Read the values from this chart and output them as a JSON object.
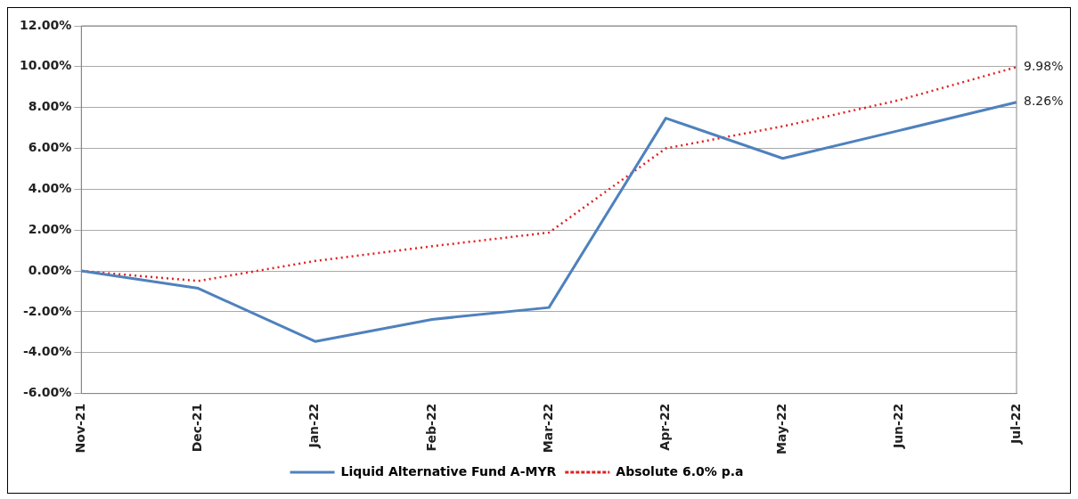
{
  "chart_data": {
    "type": "line",
    "categories": [
      "Nov-21",
      "Dec-21",
      "Jan-22",
      "Feb-22",
      "Mar-22",
      "Apr-22",
      "May-22",
      "Jun-22",
      "Jul-22"
    ],
    "series": [
      {
        "name": "Liquid Alternative Fund A-MYR",
        "color": "#4f81bd",
        "line_style": "solid",
        "values": [
          0,
          -0.85,
          -3.45,
          -2.37,
          -1.79,
          7.48,
          5.51,
          6.88,
          8.26
        ],
        "value_labels": [
          null,
          null,
          null,
          null,
          null,
          null,
          null,
          null,
          "8.26%"
        ]
      },
      {
        "name": "Absolute 6.0% p.a",
        "color": "#e02020",
        "line_style": "dotted",
        "values": [
          0,
          -0.49,
          0.49,
          1.21,
          1.88,
          6.0,
          7.08,
          8.37,
          9.98
        ],
        "value_labels": [
          null,
          null,
          null,
          null,
          null,
          null,
          null,
          null,
          "9.98%"
        ]
      }
    ],
    "ylim": [
      -6,
      12
    ],
    "yticks": [
      {
        "value": -6,
        "label": "-6.00%"
      },
      {
        "value": -4,
        "label": "-4.00%"
      },
      {
        "value": -2,
        "label": "-2.00%"
      },
      {
        "value": 0,
        "label": "0.00%"
      },
      {
        "value": 2,
        "label": "2.00%"
      },
      {
        "value": 4,
        "label": "4.00%"
      },
      {
        "value": 6,
        "label": "6.00%"
      },
      {
        "value": 8,
        "label": "8.00%"
      },
      {
        "value": 10,
        "label": "10.00%"
      },
      {
        "value": 12,
        "label": "12.00%"
      }
    ],
    "grid": "y",
    "legend": "bottom",
    "marker": "none"
  }
}
